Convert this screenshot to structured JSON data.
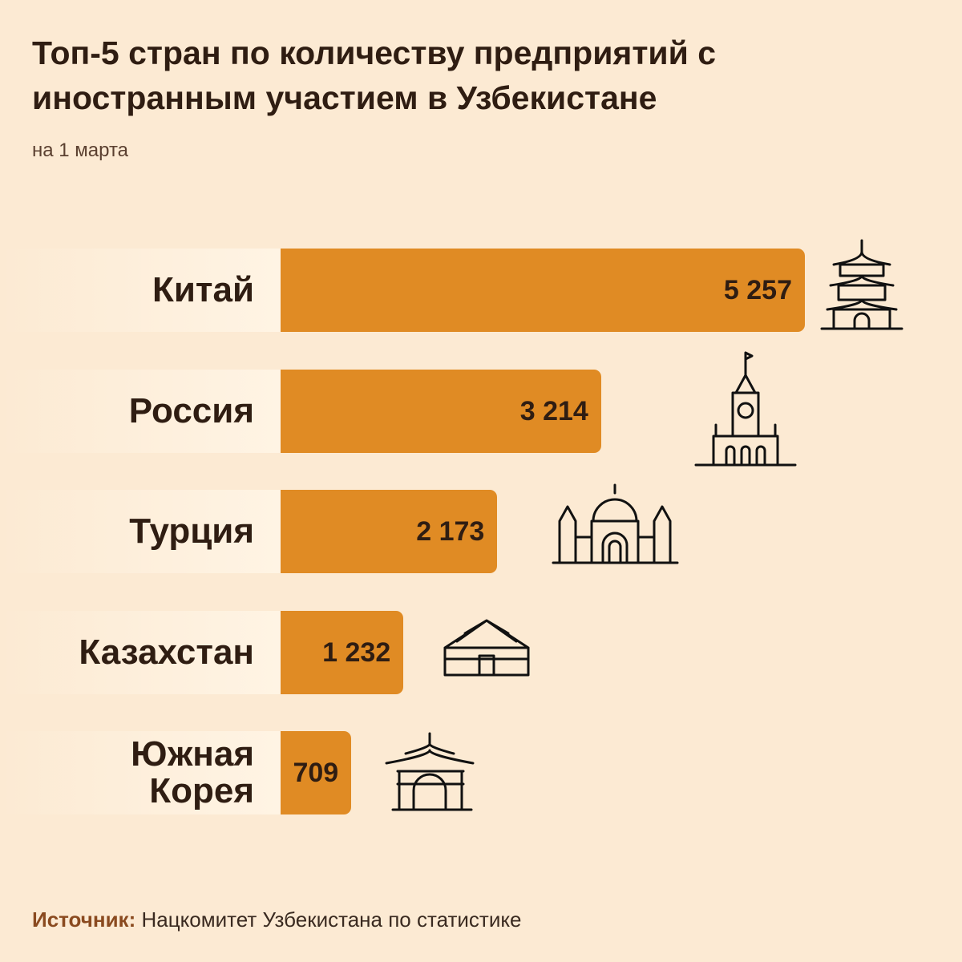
{
  "chart_data": {
    "type": "bar",
    "orientation": "horizontal",
    "title": "Топ-5 стран по количеству предприятий с иностранным участием в Узбекистане",
    "subtitle": "на 1 марта",
    "categories": [
      "Китай",
      "Россия",
      "Турция",
      "Казахстан",
      "Южная Корея"
    ],
    "values": [
      5257,
      3214,
      2173,
      1232,
      709
    ],
    "value_labels": [
      "5 257",
      "3 214",
      "2 173",
      "1 232",
      "709"
    ],
    "color": "#e08b24",
    "source_label": "Источник:",
    "source": "Нацкомитет Узбекистана по статистике"
  }
}
